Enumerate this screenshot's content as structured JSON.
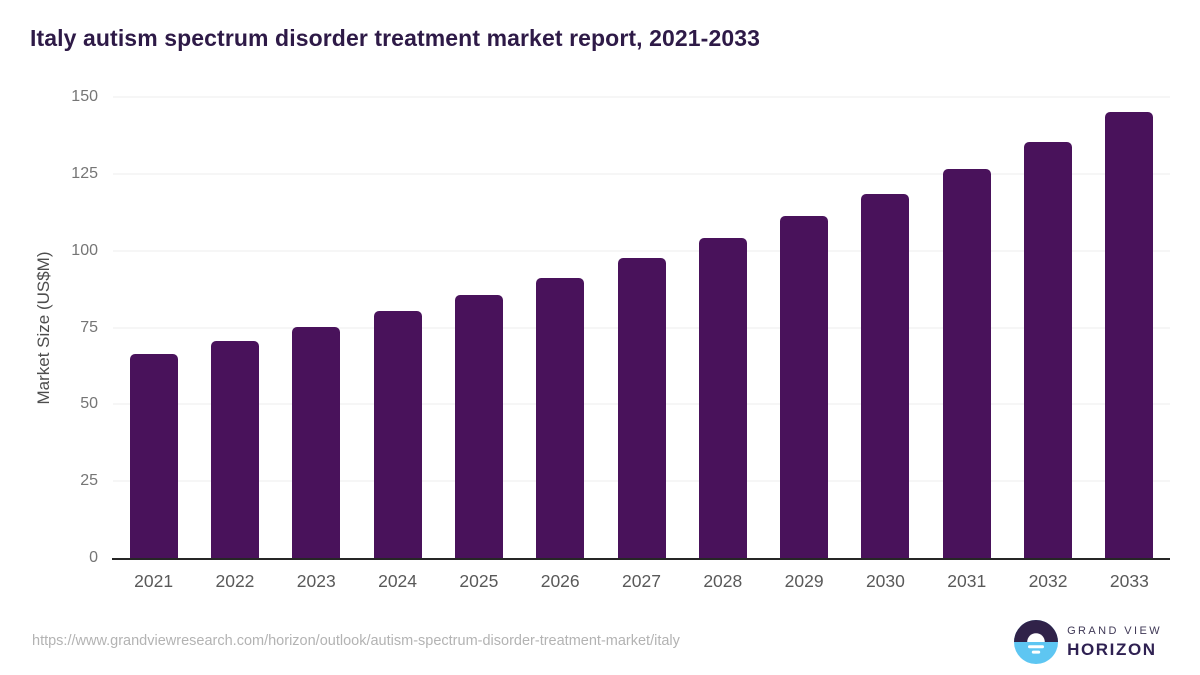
{
  "title": "Italy autism spectrum disorder treatment market report, 2021-2033",
  "chart_data": {
    "type": "bar",
    "categories": [
      "2021",
      "2022",
      "2023",
      "2024",
      "2025",
      "2026",
      "2027",
      "2028",
      "2029",
      "2030",
      "2031",
      "2032",
      "2033"
    ],
    "values": [
      66.5,
      70.7,
      75.2,
      80.3,
      85.7,
      91.2,
      97.5,
      104.0,
      111.2,
      118.5,
      126.6,
      135.5,
      145.2
    ],
    "title": "Italy autism spectrum disorder treatment market report, 2021-2033",
    "xlabel": "",
    "ylabel": "Market Size (US$M)",
    "ylim": [
      0,
      150
    ],
    "yticks": [
      0,
      25,
      50,
      75,
      100,
      125,
      150
    ],
    "grid": "horizontal",
    "legend": "none",
    "bar_color": "#49125b"
  },
  "footer": {
    "source_url": "https://www.grandviewresearch.com/horizon/outlook/autism-spectrum-disorder-treatment-market/italy",
    "logo": {
      "line1": "GRAND VIEW",
      "line2": "HORIZON"
    }
  },
  "colors": {
    "bar": "#49125b",
    "title_text": "#2e1a47",
    "y_tick_text": "#757575",
    "x_tick_text": "#595959",
    "axis_label_text": "#4d4d4d",
    "gridline": "#ececec",
    "axis_line": "#262626",
    "source_text": "#b3b3b3",
    "logo_dark": "#302249",
    "logo_blue": "#5ec6f2"
  }
}
